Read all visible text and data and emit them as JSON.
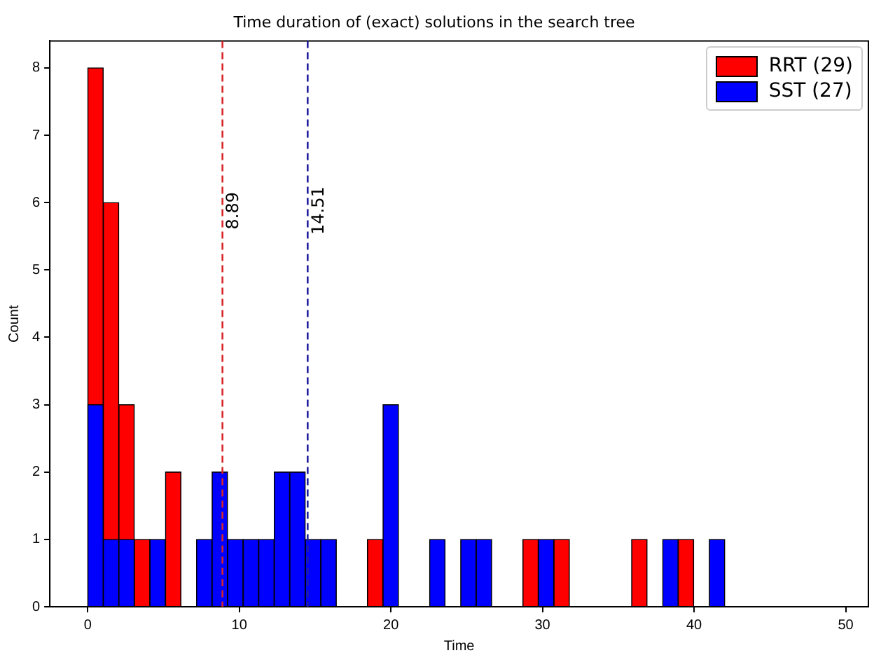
{
  "chart_data": {
    "type": "histogram",
    "title": "Time duration of (exact) solutions in the search tree",
    "xlabel": "Time",
    "ylabel": "Count",
    "bins": [
      0,
      1.03,
      2.05,
      3.08,
      4.1,
      5.13,
      6.15,
      7.18,
      8.2,
      9.23,
      10.25,
      11.28,
      12.3,
      13.33,
      14.35,
      15.38,
      16.4,
      17.43,
      18.45,
      19.48,
      20.5,
      21.53,
      22.55,
      23.58,
      24.6,
      25.63,
      26.65,
      27.68,
      28.7,
      29.73,
      30.75,
      31.78,
      32.8,
      33.83,
      34.85,
      35.88,
      36.9,
      37.93,
      38.95,
      39.98,
      41,
      42.03
    ],
    "series": [
      {
        "name": "RRT (29)",
        "color": "#ff0000",
        "values": [
          8,
          6,
          3,
          1,
          null,
          2,
          0,
          null,
          null,
          null,
          null,
          null,
          null,
          null,
          null,
          null,
          0,
          0,
          1,
          null,
          0,
          0,
          null,
          0,
          null,
          null,
          0,
          0,
          1,
          null,
          1,
          0,
          0,
          0,
          0,
          1,
          0,
          null,
          1,
          0,
          null
        ]
      },
      {
        "name": "SST (27)",
        "color": "#0000ff",
        "values": [
          3,
          1,
          1,
          0,
          1,
          0,
          0,
          1,
          2,
          1,
          1,
          1,
          2,
          2,
          1,
          1,
          0,
          0,
          0,
          3,
          0,
          0,
          1,
          0,
          1,
          1,
          0,
          0,
          0,
          1,
          0,
          0,
          0,
          0,
          0,
          0,
          0,
          1,
          0,
          0,
          1
        ]
      }
    ],
    "xlim": [
      -2.5,
      51.5
    ],
    "xticks": [
      0,
      10,
      20,
      30,
      40,
      50
    ],
    "ylim": [
      0,
      8.4
    ],
    "yticks": [
      0,
      1,
      2,
      3,
      4,
      5,
      6,
      7,
      8
    ],
    "grid": false,
    "legend": "top right",
    "ref_lines": [
      {
        "axis": "x",
        "value": 8.89,
        "label": "8.89",
        "color": "#d62728",
        "line_style": "dashed"
      },
      {
        "axis": "x",
        "value": 14.51,
        "label": "14.51",
        "color": "#1f1fa0",
        "line_style": "dashed"
      }
    ]
  }
}
